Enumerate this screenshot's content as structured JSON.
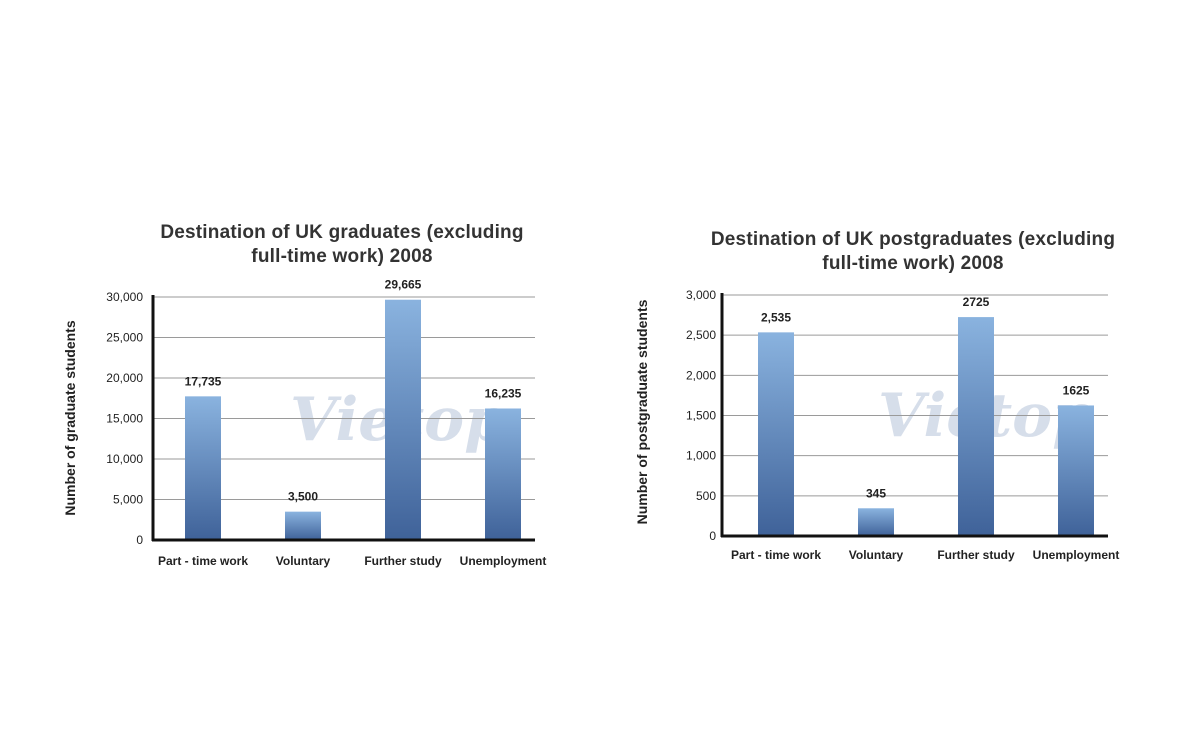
{
  "chart_data": [
    {
      "type": "bar",
      "title": "Destination of UK graduates  (excluding full-time work) 2008",
      "title_lines": [
        "Destination of UK graduates  (excluding",
        "full-time work) 2008"
      ],
      "categories": [
        "Part - time work",
        "Voluntary",
        "Further study",
        "Unemployment"
      ],
      "values": [
        17735,
        3500,
        29665,
        16235
      ],
      "value_labels": [
        "17,735",
        "3,500",
        "29,665",
        "16,235"
      ],
      "xlabel": "",
      "ylabel": "Number of graduate students",
      "ylim": [
        0,
        30000
      ],
      "yticks": [
        0,
        5000,
        10000,
        15000,
        20000,
        25000,
        30000
      ],
      "ytick_labels": [
        "0",
        "5,000",
        "10,000",
        "15,000",
        "20,000",
        "25,000",
        "30,000"
      ],
      "grid": true,
      "watermark": "Vietop"
    },
    {
      "type": "bar",
      "title": "Destination of UK postgraduates  (excluding full-time work) 2008",
      "title_lines": [
        "Destination of UK postgraduates  (excluding",
        "full-time work) 2008"
      ],
      "categories": [
        "Part - time work",
        "Voluntary",
        "Further study",
        "Unemployment"
      ],
      "values": [
        2535,
        345,
        2725,
        1625
      ],
      "value_labels": [
        "2,535",
        "345",
        "2725",
        "1625"
      ],
      "xlabel": "",
      "ylabel": "Number of postgraduate students",
      "ylim": [
        0,
        3000
      ],
      "yticks": [
        0,
        500,
        1000,
        1500,
        2000,
        2500,
        3000
      ],
      "ytick_labels": [
        "0",
        "500",
        "1,000",
        "1,500",
        "2,000",
        "2,500",
        "3,000"
      ],
      "grid": true,
      "watermark": "Vietop"
    }
  ],
  "colors": {
    "bar_top": "#8ab3df",
    "bar_bottom": "#3f6299",
    "grid": "#9a9a9a",
    "axis": "#111111"
  }
}
